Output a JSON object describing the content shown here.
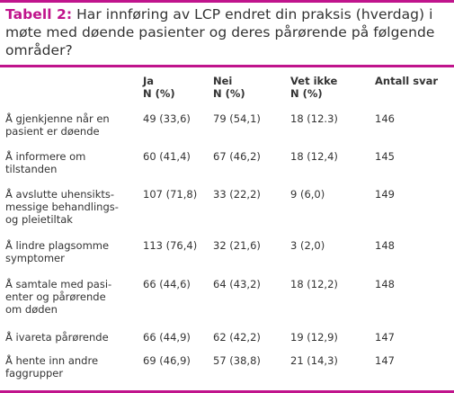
{
  "title": {
    "label": "Tabell 2:",
    "text": " Har innføring av LCP endret din praksis (hverdag) i møte med døende pasienter og deres pårørende på følgende områder?"
  },
  "columns": {
    "ja": {
      "line1": "Ja",
      "line2": "N (%)"
    },
    "nei": {
      "line1": "Nei",
      "line2": "N (%)"
    },
    "vet_ikke": {
      "line1": "Vet ikke",
      "line2": "N (%)"
    },
    "antall": {
      "line1": "Antall svar",
      "line2": ""
    }
  },
  "rows": [
    {
      "activity": "Å gjenkjenne når en\npasient er døende",
      "ja": "49 (33,6)",
      "nei": "79 (54,1)",
      "vet_ikke": "18 (12.3)",
      "antall": "146"
    },
    {
      "activity": "Å informere om\ntilstanden",
      "ja": "60 (41,4)",
      "nei": "67 (46,2)",
      "vet_ikke": "18 (12,4)",
      "antall": "145"
    },
    {
      "activity": "Å avslutte uhensikts-\nmessige behandlings-\nog pleietiltak",
      "ja": "107 (71,8)",
      "nei": "33 (22,2)",
      "vet_ikke": "9 (6,0)",
      "antall": "149"
    },
    {
      "activity": "Å lindre plagsomme\nsymptomer",
      "ja": "113 (76,4)",
      "nei": "32 (21,6)",
      "vet_ikke": "3 (2,0)",
      "antall": "148"
    },
    {
      "activity": "Å samtale med pasi-\nenter og pårørende\nom døden",
      "ja": "66 (44,6)",
      "nei": "64 (43,2)",
      "vet_ikke": "18 (12,2)",
      "antall": "148"
    },
    {
      "activity": "Å ivareta pårørende",
      "ja": "66 (44,9)",
      "nei": "62 (42,2)",
      "vet_ikke": "19 (12,9)",
      "antall": "147"
    },
    {
      "activity": "Å hente inn andre\nfaggrupper",
      "ja": "69 (46,9)",
      "nei": "57 (38,8)",
      "vet_ikke": "21 (14,3)",
      "antall": "147"
    }
  ],
  "colors": {
    "accent": "#c0148c",
    "text": "#333333"
  }
}
